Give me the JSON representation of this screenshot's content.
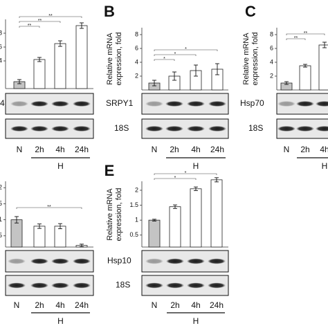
{
  "chart_data": [
    {
      "type": "bar",
      "categories": [
        "N",
        "2h",
        "4h",
        "24h"
      ],
      "values": [
        1,
        4.2,
        6.5,
        9.1
      ],
      "errors": [
        0.3,
        0.3,
        0.4,
        0.4
      ],
      "bar_colors": [
        "#c4c4c4",
        "#ffffff",
        "#ffffff",
        "#ffffff"
      ],
      "ylim": [
        0,
        10
      ],
      "yticks": [
        4,
        6,
        8
      ],
      "significance": [
        "**",
        "**",
        "**"
      ],
      "gel_labels": [
        "4"
      ],
      "group_label": "H"
    },
    {
      "type": "bar",
      "panel": "B",
      "ylabel": [
        "Relative mRNA",
        "expression, fold"
      ],
      "categories": [
        "N",
        "2h",
        "4h",
        "24h"
      ],
      "values": [
        1,
        2,
        2.8,
        3
      ],
      "errors": [
        0.4,
        0.6,
        0.8,
        0.8
      ],
      "bar_colors": [
        "#c4c4c4",
        "#ffffff",
        "#ffffff",
        "#ffffff"
      ],
      "ylim": [
        0,
        9
      ],
      "yticks": [
        2,
        4,
        6,
        8
      ],
      "significance": [
        "*",
        "*",
        "*"
      ],
      "gel_labels": [
        "SRPY1",
        "18S"
      ],
      "group_label": "H"
    },
    {
      "type": "bar",
      "panel": "C",
      "ylabel": [
        "Relative mRNA",
        "expression, fold"
      ],
      "categories": [
        "N",
        "2h",
        "4h"
      ],
      "values": [
        1,
        3.5,
        6.5
      ],
      "errors": [
        0.2,
        0.2,
        0.4
      ],
      "bar_colors": [
        "#c4c4c4",
        "#ffffff",
        "#ffffff"
      ],
      "ylim": [
        0,
        9
      ],
      "yticks": [
        2,
        4,
        6,
        8
      ],
      "significance": [
        "**",
        "**"
      ],
      "gel_labels": [
        "Hsp70",
        "18S"
      ],
      "group_label": "H"
    },
    {
      "type": "bar",
      "categories": [
        "N",
        "2h",
        "4h",
        "24h"
      ],
      "values": [
        1,
        0.8,
        0.8,
        0.2
      ],
      "errors": [
        0.1,
        0.07,
        0.08,
        0.04
      ],
      "bar_colors": [
        "#c4c4c4",
        "#ffffff",
        "#ffffff",
        "#ffffff"
      ],
      "ylim": [
        0.15,
        2.2
      ],
      "yticks": [
        0.5,
        1,
        1.5,
        2
      ],
      "significance": [
        "**"
      ],
      "group_label": "H"
    },
    {
      "type": "bar",
      "panel": "E",
      "ylabel": [
        "Relative mRNA",
        "expression, fold"
      ],
      "categories": [
        "N",
        "2h",
        "4h",
        "24h"
      ],
      "values": [
        1,
        1.45,
        2.05,
        2.35
      ],
      "errors": [
        0.03,
        0.06,
        0.06,
        0.07
      ],
      "bar_colors": [
        "#c4c4c4",
        "#ffffff",
        "#ffffff",
        "#ffffff"
      ],
      "ylim": [
        0.1,
        2.3
      ],
      "yticks": [
        0.5,
        1,
        1.5,
        2
      ],
      "significance": [
        "*",
        "*"
      ],
      "gel_labels": [
        "Hsp10",
        "18S"
      ],
      "group_label": "H"
    }
  ]
}
